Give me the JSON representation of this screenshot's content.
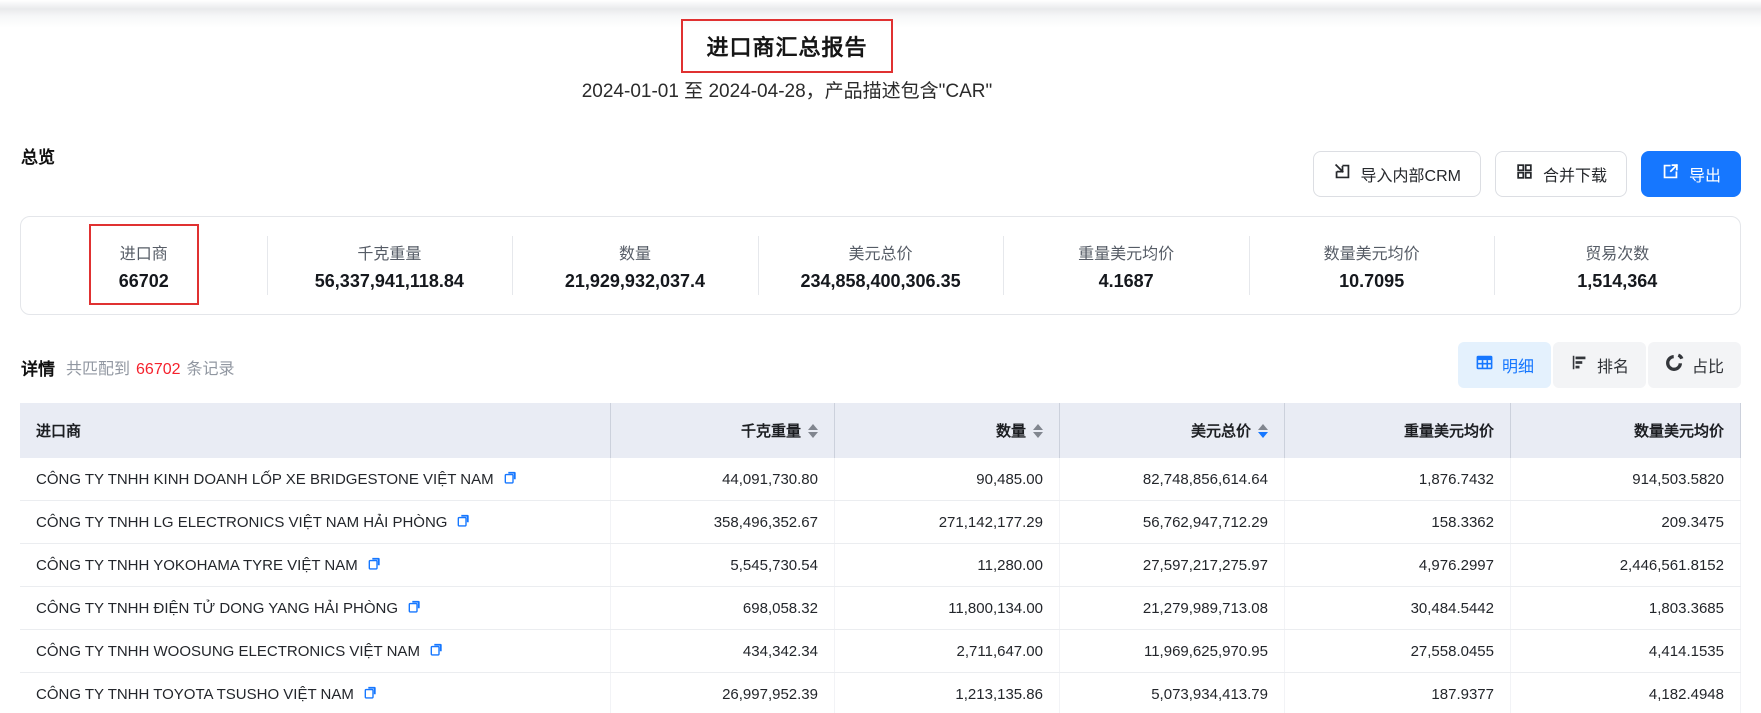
{
  "page": {
    "title": "进口商汇总报告",
    "subtitle": "2024-01-01 至 2024-04-28，产品描述包含\"CAR\""
  },
  "overview": {
    "heading": "总览",
    "buttons": {
      "import_crm": "导入内部CRM",
      "merge_download": "合并下载",
      "export": "导出"
    },
    "stats": [
      {
        "label": "进口商",
        "value": "66702",
        "highlighted": true
      },
      {
        "label": "千克重量",
        "value": "56,337,941,118.84"
      },
      {
        "label": "数量",
        "value": "21,929,932,037.4"
      },
      {
        "label": "美元总价",
        "value": "234,858,400,306.35"
      },
      {
        "label": "重量美元均价",
        "value": "4.1687"
      },
      {
        "label": "数量美元均价",
        "value": "10.7095"
      },
      {
        "label": "贸易次数",
        "value": "1,514,364"
      }
    ]
  },
  "details": {
    "heading": "详情",
    "match_prefix": "共匹配到",
    "match_count": "66702",
    "match_suffix": "条记录",
    "tabs": [
      {
        "name": "tab-detail",
        "label": "明细",
        "icon": "table-icon",
        "active": true
      },
      {
        "name": "tab-ranking",
        "label": "排名",
        "icon": "ranking-icon",
        "active": false
      },
      {
        "name": "tab-proportion",
        "label": "占比",
        "icon": "donut-icon",
        "active": false
      }
    ]
  },
  "table": {
    "columns": [
      {
        "key": "importer",
        "label": "进口商",
        "align": "left",
        "sortable": false
      },
      {
        "key": "kg",
        "label": "千克重量",
        "align": "right",
        "sortable": true,
        "sort": "none"
      },
      {
        "key": "qty",
        "label": "数量",
        "align": "right",
        "sortable": true,
        "sort": "none"
      },
      {
        "key": "usd",
        "label": "美元总价",
        "align": "right",
        "sortable": true,
        "sort": "desc"
      },
      {
        "key": "usd_per_kg",
        "label": "重量美元均价",
        "align": "right",
        "sortable": false
      },
      {
        "key": "usd_per_qty",
        "label": "数量美元均价",
        "align": "right",
        "sortable": false
      }
    ],
    "rows": [
      {
        "importer": "CÔNG TY TNHH KINH DOANH LỐP XE BRIDGESTONE VIỆT NAM",
        "kg": "44,091,730.80",
        "qty": "90,485.00",
        "usd": "82,748,856,614.64",
        "usd_per_kg": "1,876.7432",
        "usd_per_qty": "914,503.5820"
      },
      {
        "importer": "CÔNG TY TNHH LG ELECTRONICS VIỆT NAM HẢI PHÒNG",
        "kg": "358,496,352.67",
        "qty": "271,142,177.29",
        "usd": "56,762,947,712.29",
        "usd_per_kg": "158.3362",
        "usd_per_qty": "209.3475"
      },
      {
        "importer": "CÔNG TY TNHH YOKOHAMA TYRE VIỆT NAM",
        "kg": "5,545,730.54",
        "qty": "11,280.00",
        "usd": "27,597,217,275.97",
        "usd_per_kg": "4,976.2997",
        "usd_per_qty": "2,446,561.8152"
      },
      {
        "importer": "CÔNG TY TNHH ĐIỆN TỬ DONG YANG HẢI PHÒNG",
        "kg": "698,058.32",
        "qty": "11,800,134.00",
        "usd": "21,279,989,713.08",
        "usd_per_kg": "30,484.5442",
        "usd_per_qty": "1,803.3685"
      },
      {
        "importer": "CÔNG TY TNHH WOOSUNG ELECTRONICS VIỆT NAM",
        "kg": "434,342.34",
        "qty": "2,711,647.00",
        "usd": "11,969,625,970.95",
        "usd_per_kg": "27,558.0455",
        "usd_per_qty": "4,414.1535"
      },
      {
        "importer": "CÔNG TY TNHH TOYOTA TSUSHO VIỆT NAM",
        "kg": "26,997,952.39",
        "qty": "1,213,135.86",
        "usd": "5,073,934,413.79",
        "usd_per_kg": "187.9377",
        "usd_per_qty": "4,182.4948"
      }
    ]
  },
  "colors": {
    "accent_blue": "#1677ff",
    "highlight_red": "#e03131",
    "count_red": "#f5222d",
    "table_header_bg": "#e9ecf4",
    "tab_active_bg": "#e4f1fd"
  }
}
